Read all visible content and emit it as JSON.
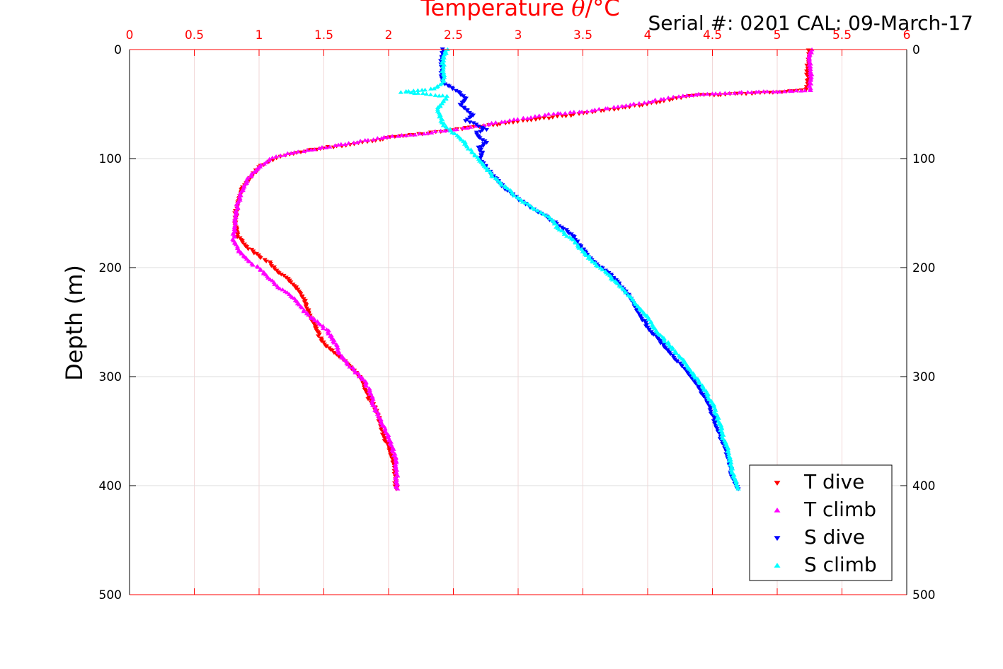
{
  "serial_label": "Serial #: 0201  CAL: 09-March-17",
  "chart_data": {
    "type": "scatter",
    "title": "",
    "xlabel_prefix": "Temperature ",
    "xlabel_symbol": "θ",
    "xlabel_suffix": "/°C",
    "ylabel": "Depth (m)",
    "xlim": [
      0,
      6
    ],
    "ylim": [
      0,
      500
    ],
    "y_reversed": true,
    "x_ticks": [
      "0",
      "0.5",
      "1",
      "1.5",
      "2",
      "2.5",
      "3",
      "3.5",
      "4",
      "4.5",
      "5",
      "5.5",
      "6"
    ],
    "y_ticks": [
      "0",
      "100",
      "200",
      "300",
      "400",
      "500"
    ],
    "grid": true,
    "axis_color": "#ff0000",
    "legend_position": "bottom-right",
    "series": [
      {
        "name": "T dive",
        "marker": "triangle-down",
        "color": "#ff0000",
        "profile": [
          [
            5.25,
            0
          ],
          [
            5.24,
            10
          ],
          [
            5.23,
            20
          ],
          [
            5.24,
            30
          ],
          [
            5.22,
            37
          ],
          [
            5.0,
            39
          ],
          [
            4.8,
            40
          ],
          [
            4.6,
            41
          ],
          [
            4.35,
            42
          ],
          [
            4.2,
            45
          ],
          [
            4.0,
            50
          ],
          [
            3.7,
            55
          ],
          [
            3.4,
            60
          ],
          [
            3.2,
            63
          ],
          [
            3.0,
            66
          ],
          [
            2.8,
            69
          ],
          [
            2.6,
            72
          ],
          [
            2.4,
            75
          ],
          [
            2.2,
            78
          ],
          [
            2.05,
            80
          ],
          [
            1.9,
            83
          ],
          [
            1.7,
            87
          ],
          [
            1.5,
            90
          ],
          [
            1.35,
            93
          ],
          [
            1.2,
            97
          ],
          [
            1.1,
            101
          ],
          [
            1.0,
            108
          ],
          [
            0.95,
            115
          ],
          [
            0.9,
            122
          ],
          [
            0.86,
            130
          ],
          [
            0.83,
            140
          ],
          [
            0.82,
            150
          ],
          [
            0.82,
            160
          ],
          [
            0.83,
            170
          ],
          [
            0.9,
            180
          ],
          [
            1.0,
            190
          ],
          [
            1.08,
            195
          ],
          [
            1.15,
            205
          ],
          [
            1.22,
            210
          ],
          [
            1.3,
            220
          ],
          [
            1.35,
            230
          ],
          [
            1.38,
            240
          ],
          [
            1.42,
            250
          ],
          [
            1.45,
            260
          ],
          [
            1.5,
            270
          ],
          [
            1.6,
            280
          ],
          [
            1.7,
            290
          ],
          [
            1.78,
            300
          ],
          [
            1.82,
            310
          ],
          [
            1.85,
            320
          ],
          [
            1.9,
            330
          ],
          [
            1.93,
            340
          ],
          [
            1.95,
            350
          ],
          [
            1.98,
            360
          ],
          [
            2.02,
            370
          ],
          [
            2.04,
            380
          ],
          [
            2.05,
            390
          ],
          [
            2.06,
            403
          ]
        ]
      },
      {
        "name": "T climb",
        "marker": "triangle-up",
        "color": "#ff00ff",
        "profile": [
          [
            5.26,
            0
          ],
          [
            5.25,
            10
          ],
          [
            5.26,
            20
          ],
          [
            5.26,
            30
          ],
          [
            5.25,
            38
          ],
          [
            4.8,
            39
          ],
          [
            4.6,
            40
          ],
          [
            4.3,
            42
          ],
          [
            4.1,
            46
          ],
          [
            3.9,
            50
          ],
          [
            3.7,
            54
          ],
          [
            3.5,
            57
          ],
          [
            3.2,
            60
          ],
          [
            3.0,
            64
          ],
          [
            2.8,
            68
          ],
          [
            2.6,
            72
          ],
          [
            2.4,
            75
          ],
          [
            2.2,
            78
          ],
          [
            2.0,
            80
          ],
          [
            1.85,
            83
          ],
          [
            1.7,
            86
          ],
          [
            1.55,
            89
          ],
          [
            1.4,
            92
          ],
          [
            1.25,
            95
          ],
          [
            1.1,
            99
          ],
          [
            1.02,
            106
          ],
          [
            0.97,
            112
          ],
          [
            0.92,
            118
          ],
          [
            0.88,
            125
          ],
          [
            0.85,
            135
          ],
          [
            0.83,
            145
          ],
          [
            0.82,
            155
          ],
          [
            0.81,
            165
          ],
          [
            0.8,
            175
          ],
          [
            0.85,
            185
          ],
          [
            0.92,
            195
          ],
          [
            1.0,
            200
          ],
          [
            1.05,
            207
          ],
          [
            1.12,
            215
          ],
          [
            1.2,
            222
          ],
          [
            1.28,
            230
          ],
          [
            1.35,
            240
          ],
          [
            1.45,
            250
          ],
          [
            1.53,
            258
          ],
          [
            1.58,
            268
          ],
          [
            1.62,
            278
          ],
          [
            1.68,
            288
          ],
          [
            1.75,
            296
          ],
          [
            1.82,
            305
          ],
          [
            1.86,
            315
          ],
          [
            1.88,
            325
          ],
          [
            1.92,
            335
          ],
          [
            1.96,
            345
          ],
          [
            2.0,
            355
          ],
          [
            2.03,
            365
          ],
          [
            2.05,
            375
          ],
          [
            2.06,
            385
          ],
          [
            2.06,
            395
          ],
          [
            2.07,
            403
          ]
        ]
      },
      {
        "name": "S dive",
        "marker": "triangle-down",
        "color": "#0000ff",
        "profile": [
          [
            2.42,
            0
          ],
          [
            2.41,
            10
          ],
          [
            2.41,
            20
          ],
          [
            2.42,
            30
          ],
          [
            2.55,
            40
          ],
          [
            2.6,
            45
          ],
          [
            2.55,
            50
          ],
          [
            2.6,
            55
          ],
          [
            2.65,
            60
          ],
          [
            2.6,
            65
          ],
          [
            2.7,
            70
          ],
          [
            2.75,
            73
          ],
          [
            2.68,
            76
          ],
          [
            2.7,
            80
          ],
          [
            2.75,
            85
          ],
          [
            2.7,
            90
          ],
          [
            2.72,
            95
          ],
          [
            2.7,
            100
          ],
          [
            2.75,
            108
          ],
          [
            2.8,
            115
          ],
          [
            2.88,
            125
          ],
          [
            2.98,
            135
          ],
          [
            3.1,
            145
          ],
          [
            3.2,
            152
          ],
          [
            3.3,
            160
          ],
          [
            3.4,
            168
          ],
          [
            3.48,
            180
          ],
          [
            3.55,
            190
          ],
          [
            3.62,
            198
          ],
          [
            3.7,
            205
          ],
          [
            3.78,
            215
          ],
          [
            3.85,
            225
          ],
          [
            3.9,
            235
          ],
          [
            3.95,
            245
          ],
          [
            4.0,
            255
          ],
          [
            4.08,
            265
          ],
          [
            4.15,
            275
          ],
          [
            4.22,
            285
          ],
          [
            4.3,
            295
          ],
          [
            4.37,
            305
          ],
          [
            4.42,
            315
          ],
          [
            4.47,
            325
          ],
          [
            4.5,
            335
          ],
          [
            4.53,
            345
          ],
          [
            4.56,
            355
          ],
          [
            4.6,
            365
          ],
          [
            4.62,
            375
          ],
          [
            4.64,
            385
          ],
          [
            4.66,
            395
          ],
          [
            4.7,
            403
          ]
        ]
      },
      {
        "name": "S climb",
        "marker": "triangle-up",
        "color": "#00ffff",
        "profile": [
          [
            2.45,
            0
          ],
          [
            2.42,
            10
          ],
          [
            2.42,
            20
          ],
          [
            2.43,
            30
          ],
          [
            2.35,
            36
          ],
          [
            2.1,
            39
          ],
          [
            2.3,
            41
          ],
          [
            2.45,
            43
          ],
          [
            2.42,
            48
          ],
          [
            2.38,
            55
          ],
          [
            2.4,
            62
          ],
          [
            2.42,
            68
          ],
          [
            2.45,
            72
          ],
          [
            2.5,
            76
          ],
          [
            2.55,
            80
          ],
          [
            2.6,
            88
          ],
          [
            2.65,
            95
          ],
          [
            2.7,
            102
          ],
          [
            2.75,
            108
          ],
          [
            2.82,
            118
          ],
          [
            2.92,
            128
          ],
          [
            3.02,
            138
          ],
          [
            3.15,
            148
          ],
          [
            3.25,
            155
          ],
          [
            3.32,
            165
          ],
          [
            3.42,
            175
          ],
          [
            3.5,
            185
          ],
          [
            3.58,
            195
          ],
          [
            3.68,
            205
          ],
          [
            3.77,
            215
          ],
          [
            3.85,
            225
          ],
          [
            3.92,
            235
          ],
          [
            4.0,
            245
          ],
          [
            4.05,
            255
          ],
          [
            4.12,
            265
          ],
          [
            4.2,
            275
          ],
          [
            4.27,
            285
          ],
          [
            4.33,
            295
          ],
          [
            4.4,
            305
          ],
          [
            4.45,
            315
          ],
          [
            4.5,
            325
          ],
          [
            4.53,
            335
          ],
          [
            4.56,
            345
          ],
          [
            4.58,
            355
          ],
          [
            4.61,
            365
          ],
          [
            4.63,
            375
          ],
          [
            4.65,
            385
          ],
          [
            4.67,
            395
          ],
          [
            4.7,
            403
          ]
        ]
      }
    ]
  }
}
